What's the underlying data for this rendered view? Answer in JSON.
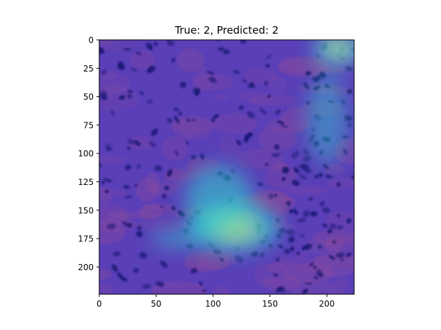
{
  "chart_data": {
    "type": "heatmap",
    "title": "True: 2, Predicted: 2",
    "xlabel": "",
    "ylabel": "",
    "image_size": [
      224,
      224
    ],
    "xlim": [
      0,
      224
    ],
    "ylim": [
      224,
      0
    ],
    "x_ticks": [
      0,
      50,
      100,
      150,
      200
    ],
    "y_ticks": [
      0,
      25,
      50,
      75,
      100,
      125,
      150,
      175,
      200
    ],
    "grid": false,
    "legend": "none",
    "overlay_colormap": "jet",
    "colors": {
      "background": "#5a3fb8",
      "low": "#3a2fc0",
      "mid": "#2fd6d0",
      "high": "#d8e86a",
      "stain_dark": "#14146e",
      "stain_pink": "#8a4a9a"
    },
    "activation_regions": [
      {
        "center": [
          118,
          165
        ],
        "spread": [
          40,
          22
        ],
        "level": 0.85
      },
      {
        "center": [
          105,
          140
        ],
        "spread": [
          30,
          30
        ],
        "level": 0.55
      },
      {
        "center": [
          70,
          175
        ],
        "spread": [
          25,
          8
        ],
        "level": 0.45
      },
      {
        "center": [
          210,
          8
        ],
        "spread": [
          22,
          14
        ],
        "level": 0.9
      },
      {
        "center": [
          200,
          70
        ],
        "spread": [
          18,
          40
        ],
        "level": 0.3
      }
    ]
  }
}
